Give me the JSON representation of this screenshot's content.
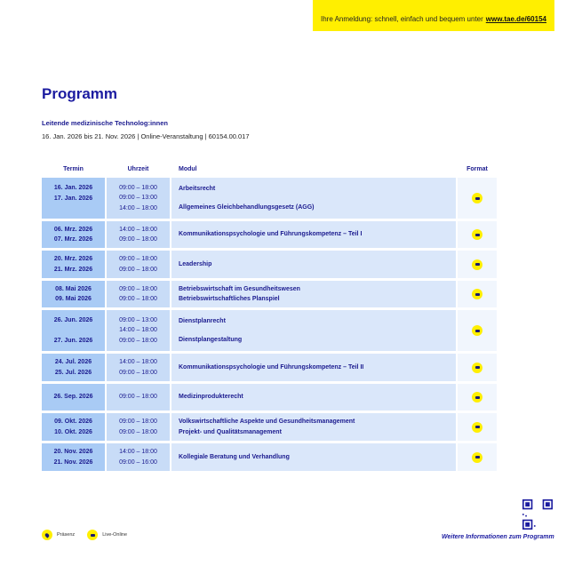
{
  "banner": {
    "text": "Ihre Anmeldung: schnell, einfach und bequem unter",
    "link": "www.tae.de/60154"
  },
  "title": "Programm",
  "subtitle": "Leitende medizinische Technolog:innen",
  "meta": "16. Jan. 2026 bis 21. Nov. 2026 | Online-Veranstaltung | 60154.00.017",
  "colors": {
    "accent": "#ffef00",
    "text": "#1b1b8f",
    "termin_bg": "#a9cbf5",
    "uhrzeit_bg": "#c8dcf7",
    "modul_bg": "#dae7fa"
  },
  "headers": {
    "termin": "Termin",
    "uhrzeit": "Uhrzeit",
    "modul": "Modul",
    "format": "Format"
  },
  "rows": [
    {
      "dates": [
        "16. Jan. 2026",
        "17. Jan. 2026"
      ],
      "times": [
        "09:00 – 18:00",
        "09:00 – 13:00",
        "14:00 – 18:00"
      ],
      "modules": [
        "Arbeitsrecht",
        "Allgemeines Gleichbehandlungsgesetz (AGG)"
      ],
      "format": "live-online"
    },
    {
      "dates": [
        "06. Mrz. 2026",
        "07. Mrz. 2026"
      ],
      "times": [
        "14:00 – 18:00",
        "09:00 – 18:00"
      ],
      "modules": [
        "Kommunikationspsychologie und Führungskompetenz – Teil I"
      ],
      "format": "live-online"
    },
    {
      "dates": [
        "20. Mrz. 2026",
        "21. Mrz. 2026"
      ],
      "times": [
        "09:00 – 18:00",
        "09:00 – 18:00"
      ],
      "modules": [
        "Leadership"
      ],
      "format": "live-online"
    },
    {
      "dates": [
        "08. Mai 2026",
        "09. Mai 2026"
      ],
      "times": [
        "09:00 – 18:00",
        "09:00 – 18:00"
      ],
      "modules": [
        "Betriebswirtschaft im Gesundheitswesen",
        "Betriebswirtschaftliches Planspiel"
      ],
      "format": "live-online"
    },
    {
      "dates": [
        "26. Jun. 2026",
        "27. Jun. 2026"
      ],
      "times": [
        "09:00 – 13:00",
        "14:00 – 18:00",
        "09:00 – 18:00"
      ],
      "modules": [
        "Dienstplanrecht",
        "Dienstplangestaltung"
      ],
      "format": "live-online"
    },
    {
      "dates": [
        "24. Jul. 2026",
        "25. Jul. 2026"
      ],
      "times": [
        "14:00 – 18:00",
        "09:00 – 18:00"
      ],
      "modules": [
        "Kommunikationspsychologie und Führungskompetenz – Teil II"
      ],
      "format": "live-online"
    },
    {
      "dates": [
        "26. Sep. 2026"
      ],
      "times": [
        "09:00 – 18:00"
      ],
      "modules": [
        "Medizinprodukterecht"
      ],
      "format": "live-online"
    },
    {
      "dates": [
        "09. Okt. 2026",
        "10. Okt. 2026"
      ],
      "times": [
        "09:00 – 18:00",
        "09:00 – 18:00"
      ],
      "modules": [
        "Volkswirtschaftliche Aspekte und Gesundheitsmanagement",
        "Projekt- und Qualitätsmanagement"
      ],
      "format": "live-online"
    },
    {
      "dates": [
        "20. Nov. 2026",
        "21. Nov. 2026"
      ],
      "times": [
        "14:00 – 18:00",
        "09:00 – 16:00"
      ],
      "modules": [
        "Kollegiale Beratung und Verhandlung"
      ],
      "format": "live-online"
    }
  ],
  "legend": {
    "praesenz": "Präsenz",
    "live_online": "Live-Online"
  },
  "more_info": "Weitere Informationen zum Programm"
}
